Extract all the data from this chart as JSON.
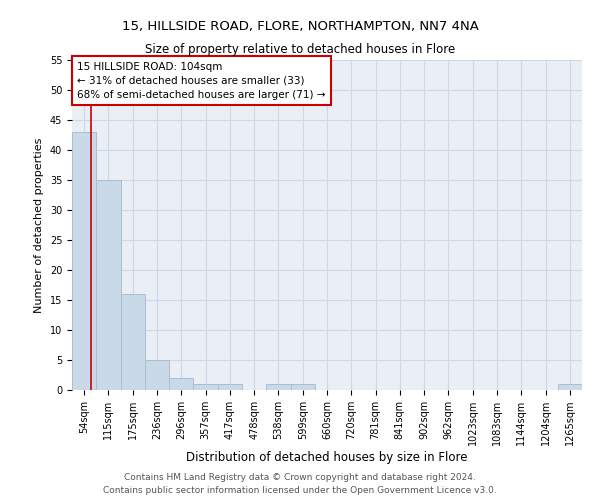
{
  "title_line1": "15, HILLSIDE ROAD, FLORE, NORTHAMPTON, NN7 4NA",
  "title_line2": "Size of property relative to detached houses in Flore",
  "xlabel": "Distribution of detached houses by size in Flore",
  "ylabel": "Number of detached properties",
  "bar_labels": [
    "54sqm",
    "115sqm",
    "175sqm",
    "236sqm",
    "296sqm",
    "357sqm",
    "417sqm",
    "478sqm",
    "538sqm",
    "599sqm",
    "660sqm",
    "720sqm",
    "781sqm",
    "841sqm",
    "902sqm",
    "962sqm",
    "1023sqm",
    "1083sqm",
    "1144sqm",
    "1204sqm",
    "1265sqm"
  ],
  "bar_values": [
    43,
    35,
    16,
    5,
    2,
    1,
    1,
    0,
    1,
    1,
    0,
    0,
    0,
    0,
    0,
    0,
    0,
    0,
    0,
    0,
    1
  ],
  "bar_color": "#c9d9e8",
  "bar_edge_color": "#a8bfd4",
  "property_line_color": "#cc0000",
  "property_line_x": 0.77,
  "annotation_box_text": "15 HILLSIDE ROAD: 104sqm\n← 31% of detached houses are smaller (33)\n68% of semi-detached houses are larger (71) →",
  "annotation_box_color": "#cc0000",
  "ylim": [
    0,
    55
  ],
  "yticks": [
    0,
    5,
    10,
    15,
    20,
    25,
    30,
    35,
    40,
    45,
    50,
    55
  ],
  "grid_color": "#d0d8e8",
  "bg_color": "#eaeff6",
  "footer_line1": "Contains HM Land Registry data © Crown copyright and database right 2024.",
  "footer_line2": "Contains public sector information licensed under the Open Government Licence v3.0.",
  "title_fontsize": 9.5,
  "subtitle_fontsize": 8.5,
  "xlabel_fontsize": 8.5,
  "ylabel_fontsize": 8,
  "tick_fontsize": 7,
  "annotation_fontsize": 7.5,
  "footer_fontsize": 6.5
}
